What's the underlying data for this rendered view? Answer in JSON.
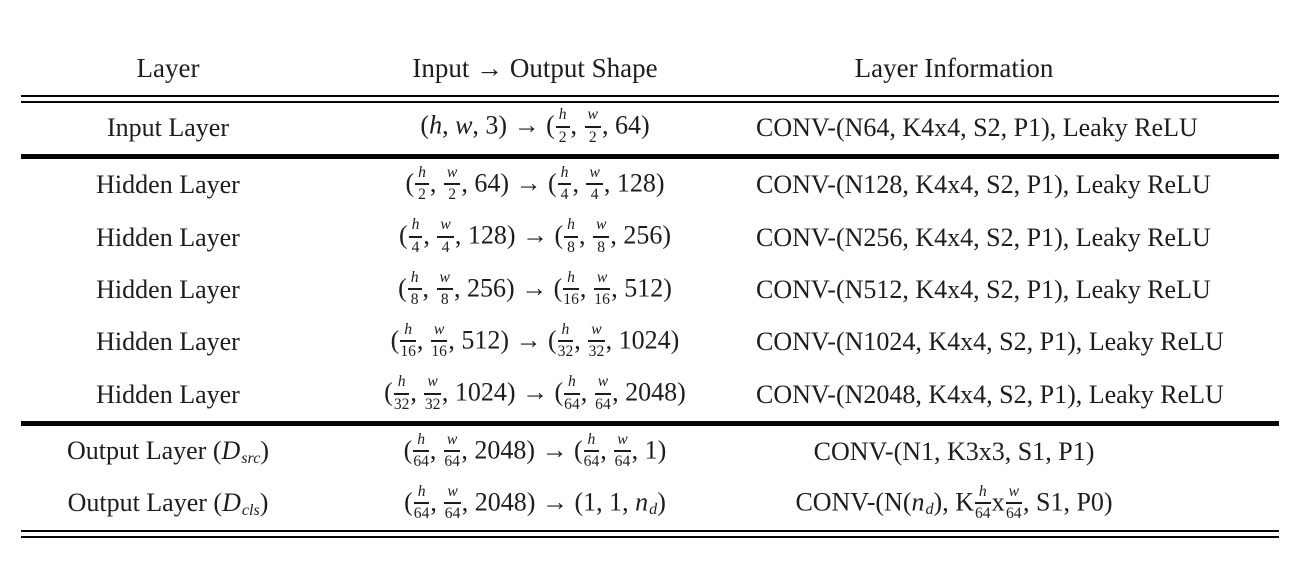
{
  "figure": {
    "kind": "paper-table",
    "background": "#ffffff",
    "text_color": "#1d1d1f",
    "rule_color": "#050505"
  },
  "table": {
    "headers": [
      "Layer",
      "Input → Output Shape",
      "Layer Information"
    ],
    "rows": [
      {
        "layer": [
          [
            "t",
            "Input Layer"
          ]
        ],
        "shape": [
          [
            "t",
            "("
          ],
          [
            "i",
            "h"
          ],
          [
            "t",
            ", "
          ],
          [
            "i",
            "w"
          ],
          [
            "t",
            ", 3) → ("
          ],
          [
            "f",
            "h",
            "2"
          ],
          [
            "t",
            ", "
          ],
          [
            "f",
            "w",
            "2"
          ],
          [
            "t",
            ", 64)"
          ]
        ],
        "info": [
          [
            "t",
            "CONV-(N64, K4x4, S2, P1), Leaky ReLU"
          ]
        ]
      },
      {
        "layer": [
          [
            "t",
            "Hidden Layer"
          ]
        ],
        "shape": [
          [
            "t",
            "("
          ],
          [
            "f",
            "h",
            "2"
          ],
          [
            "t",
            ", "
          ],
          [
            "f",
            "w",
            "2"
          ],
          [
            "t",
            ", 64) → ("
          ],
          [
            "f",
            "h",
            "4"
          ],
          [
            "t",
            ", "
          ],
          [
            "f",
            "w",
            "4"
          ],
          [
            "t",
            ", 128)"
          ]
        ],
        "info": [
          [
            "t",
            "CONV-(N128, K4x4, S2, P1), Leaky ReLU"
          ]
        ]
      },
      {
        "layer": [
          [
            "t",
            "Hidden Layer"
          ]
        ],
        "shape": [
          [
            "t",
            "("
          ],
          [
            "f",
            "h",
            "4"
          ],
          [
            "t",
            ", "
          ],
          [
            "f",
            "w",
            "4"
          ],
          [
            "t",
            ", 128) → ("
          ],
          [
            "f",
            "h",
            "8"
          ],
          [
            "t",
            ", "
          ],
          [
            "f",
            "w",
            "8"
          ],
          [
            "t",
            ", 256)"
          ]
        ],
        "info": [
          [
            "t",
            "CONV-(N256, K4x4, S2, P1), Leaky ReLU"
          ]
        ]
      },
      {
        "layer": [
          [
            "t",
            "Hidden Layer"
          ]
        ],
        "shape": [
          [
            "t",
            "("
          ],
          [
            "f",
            "h",
            "8"
          ],
          [
            "t",
            ", "
          ],
          [
            "f",
            "w",
            "8"
          ],
          [
            "t",
            ", 256) → ("
          ],
          [
            "f",
            "h",
            "16"
          ],
          [
            "t",
            ", "
          ],
          [
            "f",
            "w",
            "16"
          ],
          [
            "t",
            ", 512)"
          ]
        ],
        "info": [
          [
            "t",
            "CONV-(N512, K4x4, S2, P1), Leaky ReLU"
          ]
        ]
      },
      {
        "layer": [
          [
            "t",
            "Hidden Layer"
          ]
        ],
        "shape": [
          [
            "t",
            "("
          ],
          [
            "f",
            "h",
            "16"
          ],
          [
            "t",
            ", "
          ],
          [
            "f",
            "w",
            "16"
          ],
          [
            "t",
            ", 512) → ("
          ],
          [
            "f",
            "h",
            "32"
          ],
          [
            "t",
            ", "
          ],
          [
            "f",
            "w",
            "32"
          ],
          [
            "t",
            ", 1024)"
          ]
        ],
        "info": [
          [
            "t",
            "CONV-(N1024, K4x4, S2, P1), Leaky ReLU"
          ]
        ]
      },
      {
        "layer": [
          [
            "t",
            "Hidden Layer"
          ]
        ],
        "shape": [
          [
            "t",
            "("
          ],
          [
            "f",
            "h",
            "32"
          ],
          [
            "t",
            ", "
          ],
          [
            "f",
            "w",
            "32"
          ],
          [
            "t",
            ", 1024) → ("
          ],
          [
            "f",
            "h",
            "64"
          ],
          [
            "t",
            ", "
          ],
          [
            "f",
            "w",
            "64"
          ],
          [
            "t",
            ", 2048)"
          ]
        ],
        "info": [
          [
            "t",
            "CONV-(N2048, K4x4, S2, P1), Leaky ReLU"
          ]
        ]
      },
      {
        "layer": [
          [
            "t",
            "Output Layer ("
          ],
          [
            "i",
            "D"
          ],
          [
            "s",
            "src"
          ],
          [
            "t",
            ")"
          ]
        ],
        "shape": [
          [
            "t",
            "("
          ],
          [
            "f",
            "h",
            "64"
          ],
          [
            "t",
            ", "
          ],
          [
            "f",
            "w",
            "64"
          ],
          [
            "t",
            ", 2048) → ("
          ],
          [
            "f",
            "h",
            "64"
          ],
          [
            "t",
            ", "
          ],
          [
            "f",
            "w",
            "64"
          ],
          [
            "t",
            ", 1)"
          ]
        ],
        "info": [
          [
            "t",
            "CONV-(N1, K3x3, S1, P1)"
          ]
        ]
      },
      {
        "layer": [
          [
            "t",
            "Output Layer ("
          ],
          [
            "i",
            "D"
          ],
          [
            "s",
            "cls"
          ],
          [
            "t",
            ")"
          ]
        ],
        "shape": [
          [
            "t",
            "("
          ],
          [
            "f",
            "h",
            "64"
          ],
          [
            "t",
            ", "
          ],
          [
            "f",
            "w",
            "64"
          ],
          [
            "t",
            ", 2048) → (1, 1, "
          ],
          [
            "i",
            "n"
          ],
          [
            "s",
            "d"
          ],
          [
            "t",
            ")"
          ]
        ],
        "info": [
          [
            "t",
            "CONV-(N("
          ],
          [
            "i",
            "n"
          ],
          [
            "s",
            "d"
          ],
          [
            "t",
            "), K"
          ],
          [
            "f",
            "h",
            "64"
          ],
          [
            "t",
            "x"
          ],
          [
            "f",
            "w",
            "64"
          ],
          [
            "t",
            ", S1, P0)"
          ]
        ]
      }
    ]
  }
}
